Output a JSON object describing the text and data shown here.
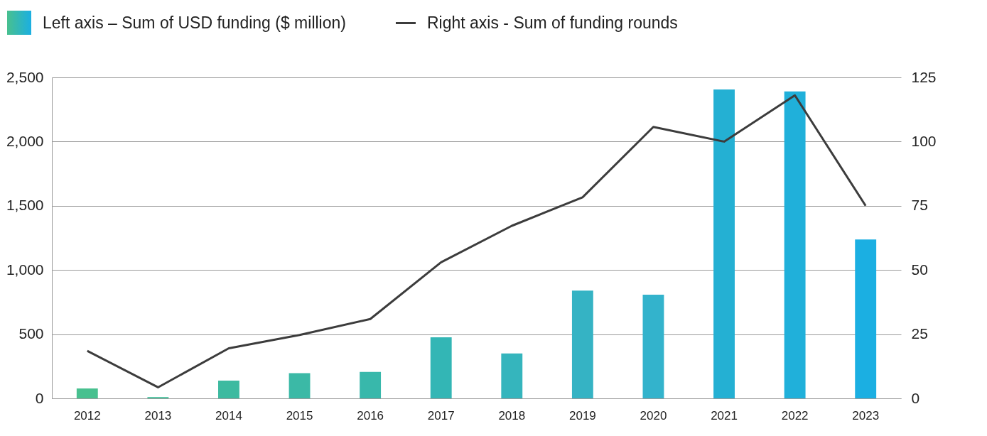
{
  "chart_data": {
    "type": "bar",
    "categories": [
      "2012",
      "2013",
      "2014",
      "2015",
      "2016",
      "2017",
      "2018",
      "2019",
      "2020",
      "2021",
      "2022",
      "2023"
    ],
    "series": [
      {
        "name": "Left axis – Sum of USD funding ($ million)",
        "colors": [
          "#48c08f",
          "#43bf9a",
          "#3dbaa0",
          "#3bb9a6",
          "#38b8ab",
          "#33b6b5",
          "#35b5bd",
          "#35b3c4",
          "#33b3cc",
          "#24b0d3",
          "#20b0da",
          "#1bafe2"
        ],
        "values": [
          77,
          10,
          138,
          196,
          206,
          476,
          350,
          840,
          808,
          2406,
          2391,
          1238
        ]
      },
      {
        "name": "Right axis - Sum of funding rounds",
        "type": "line",
        "axis": "y2",
        "color": "#3c3c3c",
        "values": [
          18.5,
          4.3,
          19.5,
          24.7,
          30.9,
          53,
          67.2,
          78.3,
          105.7,
          100,
          118,
          75
        ]
      }
    ],
    "ylim": [
      0,
      2500
    ],
    "yticks": [
      0,
      500,
      {
        "value": 1000,
        "label": "1,000"
      },
      {
        "value": 1500,
        "label": "1,500"
      },
      {
        "value": 2000,
        "label": "2,000"
      },
      {
        "value": 2500,
        "label": "2,500"
      }
    ],
    "y2lim": [
      0,
      125
    ],
    "y2ticks": [
      0,
      25,
      50,
      75,
      100,
      125
    ],
    "grid": "y",
    "legend": "top left"
  }
}
